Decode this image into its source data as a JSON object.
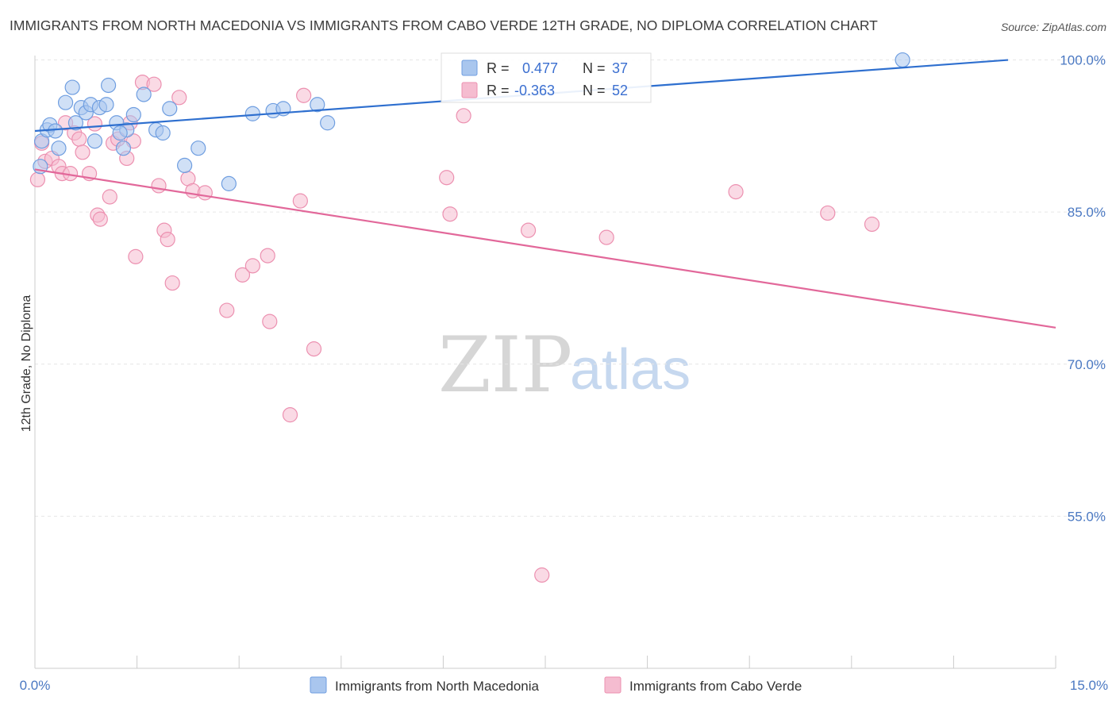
{
  "colors": {
    "blue_fill": "#a9c6ee",
    "blue_stroke": "#6f9ee0",
    "blue_line": "#2e6fcf",
    "pink_fill": "#f5bcd0",
    "pink_stroke": "#ec90b0",
    "pink_line": "#e2689a",
    "grid": "#e6e6e6",
    "axis_text": "#4a78c2"
  },
  "chart_data": {
    "type": "scatter",
    "title": "IMMIGRANTS FROM NORTH MACEDONIA VS IMMIGRANTS FROM CABO VERDE 12TH GRADE, NO DIPLOMA CORRELATION CHART",
    "source": "Source: ZipAtlas.com",
    "ylabel": "12th Grade, No Diploma",
    "xlim": [
      0,
      15
    ],
    "ylim": [
      40,
      102
    ],
    "x_ticks": [
      0,
      1.5,
      3,
      4.5,
      6,
      7.5,
      9,
      10.5,
      12,
      13.5,
      15
    ],
    "x_tick_labels": [
      "0.0%",
      "15.0%"
    ],
    "y_ticks": [
      {
        "value": 100,
        "label": "100.0%"
      },
      {
        "value": 85,
        "label": "85.0%"
      },
      {
        "value": 70,
        "label": "70.0%"
      },
      {
        "value": 55,
        "label": "55.0%"
      }
    ],
    "watermark": {
      "zip": "ZIP",
      "atlas": "atlas"
    },
    "stats": [
      {
        "r_label": "R =",
        "r_value": "0.477",
        "n_label": "N =",
        "n_value": "37"
      },
      {
        "r_label": "R =",
        "r_value": "-0.363",
        "n_label": "N =",
        "n_value": "52"
      }
    ],
    "series": [
      {
        "name": "Immigrants from North Macedonia",
        "color": "blue",
        "trend": {
          "x": [
            0,
            14.3
          ],
          "y": [
            93.0,
            100.0
          ]
        },
        "points": [
          [
            0.08,
            89.5
          ],
          [
            0.1,
            92.0
          ],
          [
            0.18,
            93.1
          ],
          [
            0.22,
            93.6
          ],
          [
            0.3,
            93.0
          ],
          [
            0.35,
            91.3
          ],
          [
            0.45,
            95.8
          ],
          [
            0.55,
            97.3
          ],
          [
            0.6,
            93.8
          ],
          [
            0.68,
            95.3
          ],
          [
            0.75,
            94.8
          ],
          [
            0.82,
            95.6
          ],
          [
            0.88,
            92.0
          ],
          [
            0.95,
            95.3
          ],
          [
            1.05,
            95.6
          ],
          [
            1.08,
            97.5
          ],
          [
            1.2,
            93.8
          ],
          [
            1.3,
            91.3
          ],
          [
            1.35,
            93.1
          ],
          [
            1.45,
            94.6
          ],
          [
            1.6,
            96.6
          ],
          [
            1.78,
            93.1
          ],
          [
            1.88,
            92.8
          ],
          [
            1.98,
            95.2
          ],
          [
            2.2,
            89.6
          ],
          [
            2.4,
            91.3
          ],
          [
            2.85,
            87.8
          ],
          [
            3.2,
            94.7
          ],
          [
            3.5,
            95.0
          ],
          [
            3.65,
            95.2
          ],
          [
            4.15,
            95.6
          ],
          [
            4.3,
            93.8
          ],
          [
            12.75,
            100.0
          ],
          [
            1.25,
            92.8
          ]
        ]
      },
      {
        "name": "Immigrants from Cabo Verde",
        "color": "pink",
        "trend": {
          "x": [
            0,
            15
          ],
          "y": [
            89.2,
            73.6
          ]
        },
        "points": [
          [
            0.04,
            88.2
          ],
          [
            0.1,
            91.8
          ],
          [
            0.15,
            90.0
          ],
          [
            0.25,
            90.3
          ],
          [
            0.35,
            89.5
          ],
          [
            0.4,
            88.8
          ],
          [
            0.45,
            93.8
          ],
          [
            0.52,
            88.8
          ],
          [
            0.58,
            92.8
          ],
          [
            0.65,
            92.2
          ],
          [
            0.7,
            90.9
          ],
          [
            0.8,
            88.8
          ],
          [
            0.88,
            93.7
          ],
          [
            0.92,
            84.7
          ],
          [
            0.96,
            84.3
          ],
          [
            1.1,
            86.5
          ],
          [
            1.15,
            91.8
          ],
          [
            1.22,
            92.2
          ],
          [
            1.35,
            90.3
          ],
          [
            1.4,
            93.8
          ],
          [
            1.48,
            80.6
          ],
          [
            1.58,
            97.8
          ],
          [
            1.75,
            97.6
          ],
          [
            1.82,
            87.6
          ],
          [
            1.9,
            83.2
          ],
          [
            1.95,
            82.3
          ],
          [
            2.02,
            78.0
          ],
          [
            2.12,
            96.3
          ],
          [
            2.25,
            88.3
          ],
          [
            2.32,
            87.1
          ],
          [
            2.5,
            86.9
          ],
          [
            2.82,
            75.3
          ],
          [
            3.05,
            78.8
          ],
          [
            3.2,
            79.7
          ],
          [
            3.42,
            80.7
          ],
          [
            3.45,
            74.2
          ],
          [
            3.75,
            65.0
          ],
          [
            3.9,
            86.1
          ],
          [
            3.95,
            96.5
          ],
          [
            4.1,
            71.5
          ],
          [
            6.05,
            88.4
          ],
          [
            6.1,
            84.8
          ],
          [
            6.3,
            94.5
          ],
          [
            7.25,
            83.2
          ],
          [
            7.45,
            49.2
          ],
          [
            8.4,
            82.5
          ],
          [
            10.3,
            87.0
          ],
          [
            11.65,
            84.9
          ],
          [
            12.3,
            83.8
          ],
          [
            1.45,
            92.0
          ]
        ]
      }
    ]
  }
}
